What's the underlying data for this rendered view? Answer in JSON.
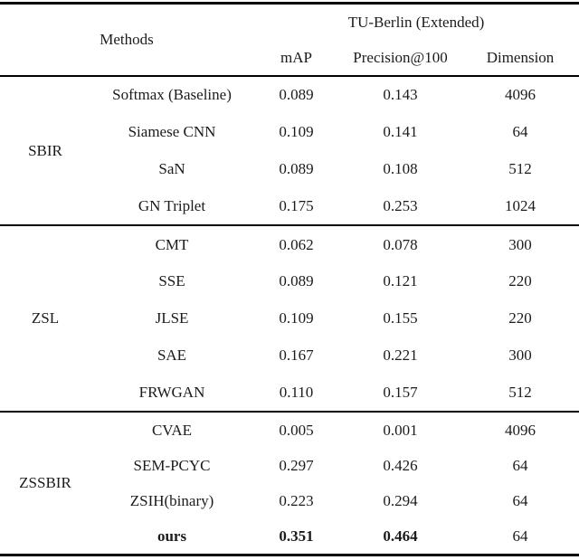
{
  "table": {
    "header": {
      "methods_label": "Methods",
      "dataset_header": "TU-Berlin (Extended)",
      "columns": [
        "mAP",
        "Precision@100",
        "Dimension"
      ]
    },
    "groups": [
      {
        "name": "SBIR",
        "rows": [
          {
            "method": "Softmax (Baseline)",
            "map": "0.089",
            "precision": "0.143",
            "dimension": "4096"
          },
          {
            "method": "Siamese CNN",
            "map": "0.109",
            "precision": "0.141",
            "dimension": "64"
          },
          {
            "method": "SaN",
            "map": "0.089",
            "precision": "0.108",
            "dimension": "512"
          },
          {
            "method": "GN Triplet",
            "map": "0.175",
            "precision": "0.253",
            "dimension": "1024"
          }
        ]
      },
      {
        "name": "ZSL",
        "rows": [
          {
            "method": "CMT",
            "map": "0.062",
            "precision": "0.078",
            "dimension": "300"
          },
          {
            "method": "SSE",
            "map": "0.089",
            "precision": "0.121",
            "dimension": "220"
          },
          {
            "method": "JLSE",
            "map": "0.109",
            "precision": "0.155",
            "dimension": "220"
          },
          {
            "method": "SAE",
            "map": "0.167",
            "precision": "0.221",
            "dimension": "300"
          },
          {
            "method": "FRWGAN",
            "map": "0.110",
            "precision": "0.157",
            "dimension": "512"
          }
        ]
      },
      {
        "name": "ZSSBIR",
        "rows": [
          {
            "method": "CVAE",
            "map": "0.005",
            "precision": "0.001",
            "dimension": "4096"
          },
          {
            "method": "SEM-PCYC",
            "map": "0.297",
            "precision": "0.426",
            "dimension": "64"
          },
          {
            "method": "ZSIH(binary)",
            "map": "0.223",
            "precision": "0.294",
            "dimension": "64"
          },
          {
            "method": "ours",
            "map": "0.351",
            "precision": "0.464",
            "dimension": "64",
            "highlight": true
          }
        ]
      }
    ],
    "colors": {
      "text": "#1b1b1b",
      "rule": "#000000",
      "background": "#ffffff"
    }
  }
}
